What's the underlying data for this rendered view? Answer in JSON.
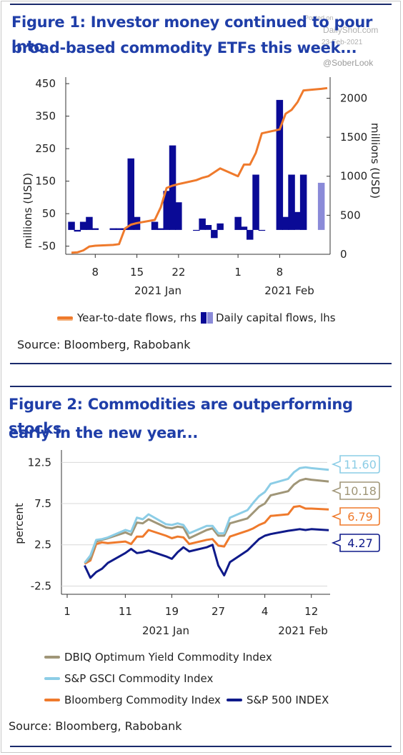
{
  "watermark": {
    "posted_on": "Posted on",
    "site": "DailyShot.com",
    "date": "23-Feb-2021",
    "handle": "@SoberLook"
  },
  "figure1": {
    "title_line1": "Figure 1: Investor money continued to pour into",
    "title_line2": "broad-based commodity ETFs this week...",
    "source": "Source: Bloomberg, Rabobank",
    "legend": {
      "line": "Year-to-date flows, rhs",
      "bars": "Daily capital flows, lhs"
    }
  },
  "figure2": {
    "title_line1": "Figure 2: Commodities are outperforming stocks",
    "title_line2": "early in the new year...",
    "source": "Source: Bloomberg, Rabobank",
    "legend": {
      "dbiq": "DBIQ Optimum Yield Commodity Index",
      "gsci": "S&P GSCI Commodity Index",
      "bcom": "Bloomberg Commodity Index",
      "spx": "S&P 500 INDEX"
    }
  },
  "chart_data": [
    {
      "type": "bar",
      "colors": {
        "bars": "#0a0a96",
        "bars_partial": "#8a8ad8",
        "line": "#ef7a2c"
      },
      "xlabel": "",
      "ylabel": "millions (USD)",
      "ylabel_right": "millions (USD)",
      "ylim": [
        -75,
        470
      ],
      "ylim_right": [
        0,
        2270
      ],
      "yticks": [
        "450",
        "350",
        "250",
        "150",
        "50",
        "-50"
      ],
      "yticks_right": [
        "2000",
        "1500",
        "1000",
        "500",
        "0"
      ],
      "xticks": [
        "8",
        "15",
        "22",
        "1",
        "8"
      ],
      "xgroups": [
        "2021 Jan",
        "2021 Feb"
      ],
      "x": [
        "2021-01-04",
        "2021-01-05",
        "2021-01-06",
        "2021-01-07",
        "2021-01-08",
        "2021-01-11",
        "2021-01-12",
        "2021-01-13",
        "2021-01-14",
        "2021-01-15",
        "2021-01-18",
        "2021-01-19",
        "2021-01-20",
        "2021-01-21",
        "2021-01-22",
        "2021-01-25",
        "2021-01-26",
        "2021-01-27",
        "2021-01-28",
        "2021-01-29",
        "2021-02-01",
        "2021-02-02",
        "2021-02-03",
        "2021-02-04",
        "2021-02-05",
        "2021-02-08",
        "2021-02-09",
        "2021-02-10",
        "2021-02-11",
        "2021-02-12",
        "2021-02-15",
        "2021-02-16"
      ],
      "series": [
        {
          "name": "Daily capital flows, lhs",
          "kind": "bar",
          "values": [
            25,
            -5,
            25,
            40,
            5,
            5,
            5,
            5,
            220,
            40,
            25,
            5,
            120,
            260,
            85,
            0,
            35,
            15,
            -25,
            20,
            40,
            10,
            -30,
            170,
            0,
            400,
            40,
            170,
            55,
            170,
            145,
            null
          ],
          "partial_last": true
        },
        {
          "name": "Year-to-date flows, rhs",
          "kind": "line",
          "values": [
            20,
            25,
            50,
            100,
            110,
            120,
            130,
            330,
            380,
            400,
            440,
            600,
            850,
            880,
            900,
            950,
            980,
            1000,
            1050,
            1100,
            1000,
            1150,
            1150,
            1300,
            1550,
            1600,
            1800,
            1850,
            1950,
            2100,
            2120,
            2130
          ]
        }
      ]
    },
    {
      "type": "line",
      "xlabel": "",
      "ylabel": "percent",
      "ylim": [
        -3.5,
        14
      ],
      "yticks": [
        "12.5",
        "7.5",
        "2.5",
        "-2.5"
      ],
      "xticks": [
        "1",
        "11",
        "19",
        "27",
        "4",
        "12"
      ],
      "xgroups": [
        "2021 Jan",
        "2021 Feb"
      ],
      "x": [
        "2021-01-04",
        "2021-01-05",
        "2021-01-06",
        "2021-01-07",
        "2021-01-08",
        "2021-01-11",
        "2021-01-12",
        "2021-01-13",
        "2021-01-14",
        "2021-01-15",
        "2021-01-18",
        "2021-01-19",
        "2021-01-20",
        "2021-01-21",
        "2021-01-22",
        "2021-01-25",
        "2021-01-26",
        "2021-01-27",
        "2021-01-28",
        "2021-01-29",
        "2021-02-01",
        "2021-02-02",
        "2021-02-03",
        "2021-02-04",
        "2021-02-05",
        "2021-02-08",
        "2021-02-09",
        "2021-02-10",
        "2021-02-11",
        "2021-02-12",
        "2021-02-15"
      ],
      "series": [
        {
          "name": "DBIQ Optimum Yield Commodity Index",
          "color": "#a09678",
          "end_label": "10.18",
          "values": [
            0.3,
            0.8,
            2.9,
            3.1,
            3.3,
            4.0,
            3.7,
            5.2,
            5.1,
            5.6,
            4.6,
            4.5,
            4.7,
            4.6,
            3.3,
            4.3,
            4.5,
            3.6,
            3.6,
            5.1,
            5.7,
            6.4,
            7.1,
            7.5,
            8.5,
            9.0,
            9.8,
            10.3,
            10.5,
            10.4,
            10.18
          ]
        },
        {
          "name": "S&P GSCI Commodity Index",
          "color": "#8ccde6",
          "end_label": "11.60",
          "values": [
            0.3,
            1.2,
            3.1,
            3.2,
            3.4,
            4.3,
            4.1,
            5.8,
            5.6,
            6.2,
            5.0,
            4.9,
            5.1,
            4.9,
            3.9,
            4.8,
            4.8,
            3.9,
            3.9,
            5.8,
            6.7,
            7.6,
            8.4,
            8.9,
            9.9,
            10.5,
            11.3,
            11.8,
            11.9,
            11.8,
            11.6
          ]
        },
        {
          "name": "Bloomberg Commodity Index",
          "color": "#ef7a2c",
          "end_label": "6.79",
          "values": [
            0.2,
            0.6,
            2.6,
            2.8,
            2.7,
            2.9,
            2.6,
            3.5,
            3.5,
            4.3,
            3.6,
            3.3,
            3.5,
            3.4,
            2.6,
            3.1,
            3.2,
            2.4,
            2.3,
            3.5,
            4.2,
            4.5,
            4.9,
            5.2,
            6.0,
            6.2,
            7.1,
            7.2,
            6.9,
            6.9,
            6.79
          ]
        },
        {
          "name": "S&P 500 INDEX",
          "color": "#0f1a8a",
          "end_label": "4.27",
          "values": [
            0.0,
            -1.5,
            -0.8,
            -0.4,
            0.3,
            1.5,
            2.0,
            1.5,
            1.6,
            1.8,
            1.1,
            0.8,
            1.6,
            2.2,
            1.7,
            2.2,
            2.5,
            0.0,
            -1.2,
            0.4,
            1.8,
            2.5,
            3.2,
            3.6,
            3.8,
            4.2,
            4.3,
            4.4,
            4.3,
            4.4,
            4.27
          ]
        }
      ]
    }
  ]
}
